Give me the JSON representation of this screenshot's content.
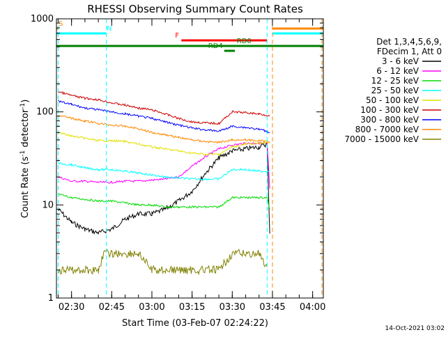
{
  "chart_data": {
    "type": "line",
    "title": "RHESSI Observing Summary Count Rates",
    "xlabel": "Start Time (03-Feb-07 02:24:22)",
    "ylabel_main": "Count Rate (s",
    "ylabel_sup1": "-1",
    "ylabel_mid": " detector",
    "ylabel_sup2": "-1",
    "ylabel_end": ")",
    "y_scale": "log",
    "ylim": [
      1,
      1000
    ],
    "xlim": [
      "02:24:22",
      "04:04:00"
    ],
    "x_ticks": [
      "02:30",
      "02:45",
      "03:00",
      "03:15",
      "03:30",
      "03:45",
      "04:00"
    ],
    "y_ticks": [
      "1",
      "10",
      "100",
      "1000"
    ],
    "timestamp": "14-Oct-2021 03:02",
    "legend_header": [
      "Det 1,3,4,5,6,9,",
      "FDecim 1, Att 0"
    ],
    "series": [
      {
        "name": "3 - 6 keV",
        "color": "#000000",
        "x": [
          "02:25",
          "02:30",
          "02:35",
          "02:40",
          "02:45",
          "02:50",
          "02:55",
          "03:00",
          "03:05",
          "03:10",
          "03:15",
          "03:20",
          "03:25",
          "03:30",
          "03:35",
          "03:40",
          "03:42",
          "03:43",
          "03:44"
        ],
        "y": [
          9,
          6.5,
          5.5,
          5,
          5.5,
          7,
          8,
          8,
          9,
          11,
          14,
          22,
          32,
          38,
          40,
          42,
          44,
          45,
          5
        ]
      },
      {
        "name": "6 - 12 keV",
        "color": "#ff00ff",
        "x": [
          "02:25",
          "02:30",
          "02:35",
          "02:40",
          "02:45",
          "02:50",
          "02:55",
          "03:00",
          "03:05",
          "03:10",
          "03:15",
          "03:20",
          "03:25",
          "03:30",
          "03:35",
          "03:40",
          "03:43",
          "03:44"
        ],
        "y": [
          20,
          18,
          18,
          17.5,
          17.5,
          18,
          18,
          18.5,
          19,
          20,
          26,
          33,
          40,
          44,
          46,
          46,
          46,
          15
        ]
      },
      {
        "name": "12 - 25 keV",
        "color": "#00dd00",
        "x": [
          "02:25",
          "02:30",
          "02:35",
          "02:40",
          "02:45",
          "02:50",
          "02:55",
          "03:00",
          "03:05",
          "03:10",
          "03:15",
          "03:20",
          "03:25",
          "03:30",
          "03:35",
          "03:40",
          "03:43",
          "03:44"
        ],
        "y": [
          13,
          12,
          11.5,
          11,
          11,
          10.5,
          10,
          10,
          9.5,
          9.5,
          9.5,
          9.5,
          9.5,
          12,
          12,
          12,
          12,
          9
        ]
      },
      {
        "name": "25 - 50 keV",
        "color": "#00ffff",
        "x": [
          "02:25",
          "02:30",
          "02:35",
          "02:40",
          "02:45",
          "02:50",
          "02:55",
          "03:00",
          "03:05",
          "03:10",
          "03:15",
          "03:20",
          "03:25",
          "03:30",
          "03:35",
          "03:40",
          "03:43",
          "03:44"
        ],
        "y": [
          28,
          27,
          25,
          24,
          24,
          23,
          22,
          21,
          20,
          19.5,
          19,
          19,
          19,
          24,
          24,
          23,
          23,
          24
        ]
      },
      {
        "name": "50 - 100 keV",
        "color": "#e0e000",
        "x": [
          "02:25",
          "02:30",
          "02:35",
          "02:40",
          "02:45",
          "02:50",
          "02:55",
          "03:00",
          "03:05",
          "03:10",
          "03:15",
          "03:20",
          "03:25",
          "03:30",
          "03:35",
          "03:40",
          "03:43",
          "03:44"
        ],
        "y": [
          60,
          55,
          52,
          49,
          49,
          48,
          45,
          42,
          40,
          38,
          36,
          35,
          35,
          42,
          45,
          46,
          47,
          47
        ]
      },
      {
        "name": "100 - 300 keV",
        "color": "#cc0000",
        "x": [
          "02:25",
          "02:30",
          "02:35",
          "02:40",
          "02:45",
          "02:50",
          "02:55",
          "03:00",
          "03:05",
          "03:10",
          "03:15",
          "03:20",
          "03:25",
          "03:30",
          "03:35",
          "03:40",
          "03:43",
          "03:44"
        ],
        "y": [
          165,
          150,
          140,
          135,
          125,
          118,
          110,
          105,
          95,
          85,
          78,
          76,
          75,
          100,
          98,
          95,
          92,
          90
        ]
      },
      {
        "name": "300 - 800 keV",
        "color": "#0000ff",
        "x": [
          "02:25",
          "02:30",
          "02:35",
          "02:40",
          "02:45",
          "02:50",
          "02:55",
          "03:00",
          "03:05",
          "03:10",
          "03:15",
          "03:20",
          "03:25",
          "03:30",
          "03:35",
          "03:40",
          "03:43",
          "03:44"
        ],
        "y": [
          130,
          120,
          110,
          105,
          100,
          95,
          90,
          85,
          78,
          72,
          67,
          64,
          62,
          70,
          68,
          65,
          62,
          60
        ]
      },
      {
        "name": "800 - 7000 keV",
        "color": "#ff8800",
        "x": [
          "02:25",
          "02:30",
          "02:35",
          "02:40",
          "02:45",
          "02:50",
          "02:55",
          "03:00",
          "03:05",
          "03:10",
          "03:15",
          "03:20",
          "03:25",
          "03:30",
          "03:35",
          "03:40",
          "03:43",
          "03:44"
        ],
        "y": [
          92,
          85,
          80,
          75,
          72,
          70,
          66,
          60,
          57,
          53,
          50,
          48,
          47,
          50,
          50,
          49,
          48,
          48
        ]
      },
      {
        "name": "7000 - 15000 keV",
        "color": "#808000",
        "x": [
          "02:25",
          "02:40",
          "02:42",
          "02:55",
          "03:00",
          "03:05",
          "03:25",
          "03:30",
          "03:40",
          "03:43"
        ],
        "y": [
          2,
          2,
          3,
          3,
          2,
          2,
          2,
          3,
          3,
          2
        ]
      }
    ],
    "flags": [
      {
        "label": "S",
        "color": "#ff8800",
        "start": "02:24:22",
        "end": "02:25:00",
        "row": 1
      },
      {
        "label": "N",
        "color": "#00ffff",
        "start": "02:24:22",
        "end": "02:43:00",
        "row": 2
      },
      {
        "label": "",
        "color": "#00ffff",
        "start": "03:45:00",
        "end": "04:04:00",
        "row": 2
      },
      {
        "label": "",
        "color": "#ff8800",
        "start": "03:45:00",
        "end": "04:04:00",
        "row": 1
      },
      {
        "label": "F",
        "color": "#ff0000",
        "start": "03:11:00",
        "end": "03:43:00",
        "row": 3
      },
      {
        "label": "RD0",
        "color": "#008000",
        "start": "02:24:22",
        "end": "04:04:00",
        "row": 4
      },
      {
        "label": "RD4",
        "color": "#008000",
        "start": "03:27:00",
        "end": "03:31:00",
        "row": 5
      }
    ],
    "markers": [
      {
        "time": "02:25:00",
        "color": "#00ffff"
      },
      {
        "time": "02:43:00",
        "color": "#00ffff"
      },
      {
        "time": "03:43:00",
        "color": "#00ffff"
      },
      {
        "time": "03:45:00",
        "color": "#ff8800"
      },
      {
        "time": "04:03:30",
        "color": "#00ffff"
      },
      {
        "time": "04:03:30",
        "color": "#ff8800"
      }
    ],
    "grid": false,
    "legend_placement": "right"
  }
}
